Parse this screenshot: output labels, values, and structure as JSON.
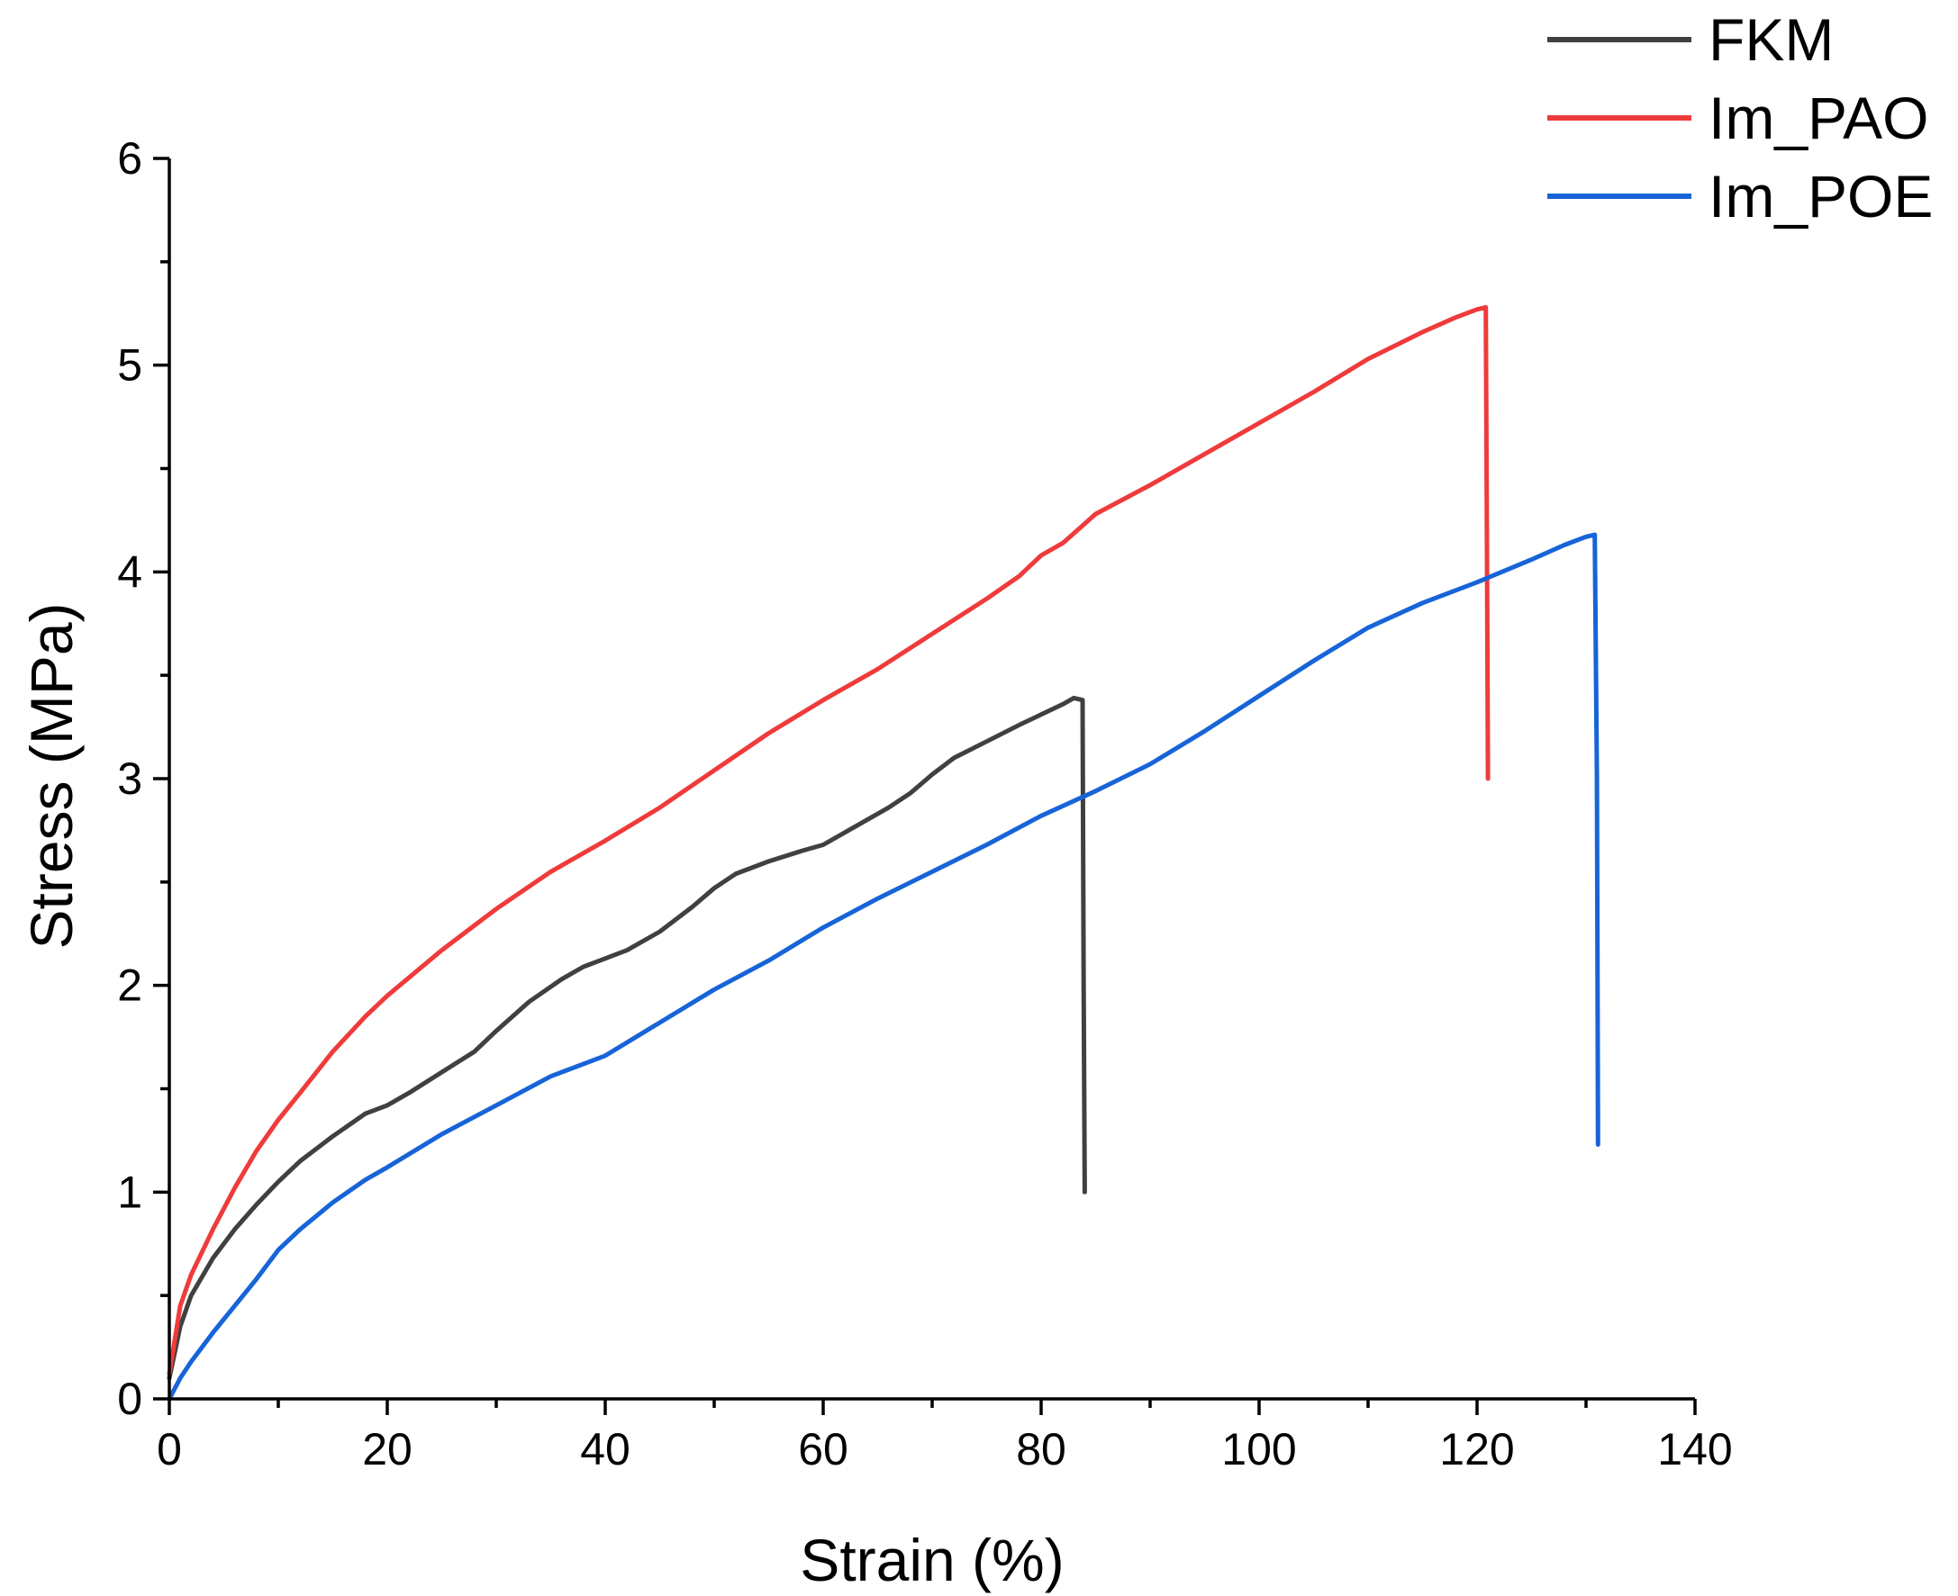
{
  "chart_data": {
    "type": "line",
    "title": "",
    "xlabel": "Strain (%)",
    "ylabel": "Stress (MPa)",
    "xlim": [
      0,
      140
    ],
    "ylim": [
      0,
      6
    ],
    "x_ticks": [
      0,
      20,
      40,
      60,
      80,
      100,
      120,
      140
    ],
    "y_ticks": [
      0,
      1,
      2,
      3,
      4,
      5,
      6
    ],
    "x_tick_labels": [
      "0",
      "20",
      "40",
      "60",
      "80",
      "100",
      "120",
      "140"
    ],
    "y_tick_labels": [
      "0",
      "1",
      "2",
      "3",
      "4",
      "5",
      "6"
    ],
    "grid": false,
    "legend_position": "top-right",
    "series": [
      {
        "name": "FKM",
        "color": "#404040",
        "x": [
          0,
          1,
          2,
          4,
          6,
          8,
          10,
          12,
          15,
          18,
          20,
          22,
          25,
          28,
          30,
          33,
          36,
          38,
          40,
          42,
          45,
          48,
          50,
          52,
          55,
          58,
          60,
          63,
          66,
          68,
          70,
          72,
          75,
          78,
          80,
          82,
          83,
          83.8,
          83.9,
          84.0
        ],
        "y": [
          0.1,
          0.35,
          0.5,
          0.68,
          0.82,
          0.94,
          1.05,
          1.15,
          1.27,
          1.38,
          1.42,
          1.48,
          1.58,
          1.68,
          1.78,
          1.92,
          2.03,
          2.09,
          2.13,
          2.17,
          2.26,
          2.38,
          2.47,
          2.54,
          2.6,
          2.65,
          2.68,
          2.77,
          2.86,
          2.93,
          3.02,
          3.1,
          3.18,
          3.26,
          3.31,
          3.36,
          3.39,
          3.38,
          2.0,
          1.0
        ]
      },
      {
        "name": "Im_PAO",
        "color": "#ef3b3b",
        "x": [
          0,
          1,
          2,
          4,
          6,
          8,
          10,
          12,
          15,
          18,
          20,
          25,
          30,
          35,
          40,
          45,
          50,
          55,
          60,
          65,
          70,
          75,
          78,
          80,
          82,
          85,
          90,
          95,
          100,
          105,
          110,
          115,
          118,
          120,
          120.8,
          120.9,
          121.0
        ],
        "y": [
          0.12,
          0.45,
          0.6,
          0.82,
          1.02,
          1.2,
          1.35,
          1.48,
          1.68,
          1.85,
          1.95,
          2.17,
          2.37,
          2.55,
          2.7,
          2.86,
          3.04,
          3.22,
          3.38,
          3.53,
          3.7,
          3.87,
          3.98,
          4.08,
          4.14,
          4.28,
          4.42,
          4.57,
          4.72,
          4.87,
          5.03,
          5.16,
          5.23,
          5.27,
          5.28,
          4.2,
          3.0
        ]
      },
      {
        "name": "Im_POE",
        "color": "#1764d8",
        "x": [
          0,
          1,
          2,
          4,
          6,
          8,
          10,
          12,
          15,
          18,
          20,
          25,
          30,
          35,
          40,
          45,
          50,
          55,
          60,
          65,
          70,
          75,
          80,
          85,
          90,
          95,
          100,
          105,
          110,
          115,
          120,
          125,
          128,
          130,
          130.8,
          131.0,
          131.1
        ],
        "y": [
          0.0,
          0.1,
          0.18,
          0.32,
          0.45,
          0.58,
          0.72,
          0.82,
          0.95,
          1.06,
          1.12,
          1.28,
          1.42,
          1.56,
          1.66,
          1.82,
          1.98,
          2.12,
          2.28,
          2.42,
          2.55,
          2.68,
          2.82,
          2.94,
          3.07,
          3.23,
          3.4,
          3.57,
          3.73,
          3.85,
          3.95,
          4.06,
          4.13,
          4.17,
          4.18,
          3.0,
          1.23
        ]
      }
    ]
  }
}
